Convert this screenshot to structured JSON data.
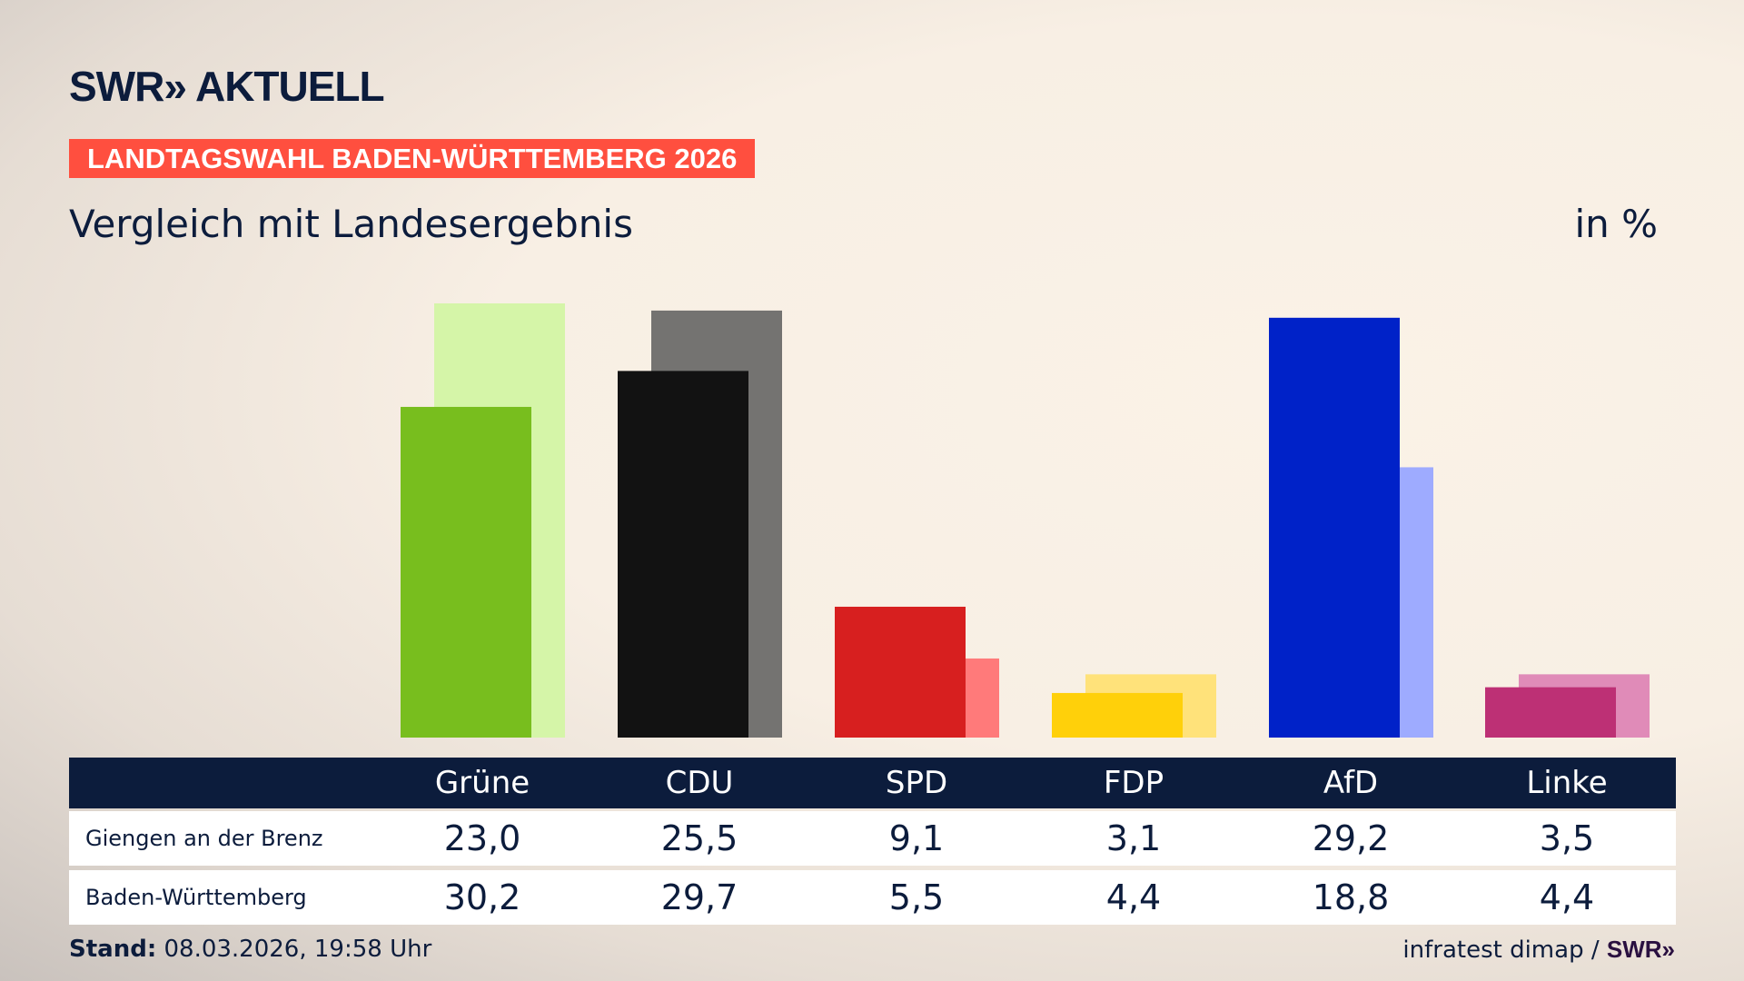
{
  "header": {
    "logo": "SWR» AKTUELL",
    "banner": "LANDTAGSWAHL BADEN-WÜRTTEMBERG 2026",
    "subtitle": "Vergleich mit Landesergebnis",
    "unit": "in %"
  },
  "chart_data": {
    "type": "bar",
    "categories": [
      "Grüne",
      "CDU",
      "SPD",
      "FDP",
      "AfD",
      "Linke"
    ],
    "series": [
      {
        "name": "Giengen an der Brenz",
        "values": [
          23.0,
          25.5,
          9.1,
          3.1,
          29.2,
          3.5
        ],
        "colors": [
          "#78be1e",
          "#121212",
          "#d71f1f",
          "#ffd00a",
          "#0022c8",
          "#bd3075"
        ]
      },
      {
        "name": "Baden-Württemberg",
        "values": [
          30.2,
          29.7,
          5.5,
          4.4,
          18.8,
          4.4
        ],
        "colors": [
          "#d5f5a8",
          "#747371",
          "#ff7a7a",
          "#ffe27a",
          "#9eabff",
          "#e08bb8"
        ]
      }
    ],
    "ylim": [
      0,
      30.2
    ],
    "grid": false,
    "legend": "table-below"
  },
  "table": {
    "headers": [
      "Grüne",
      "CDU",
      "SPD",
      "FDP",
      "AfD",
      "Linke"
    ],
    "rows": [
      {
        "label": "Giengen an der Brenz",
        "values": [
          "23,0",
          "25,5",
          "9,1",
          "3,1",
          "29,2",
          "3,5"
        ]
      },
      {
        "label": "Baden-Württemberg",
        "values": [
          "30,2",
          "29,7",
          "5,5",
          "4,4",
          "18,8",
          "4,4"
        ]
      }
    ]
  },
  "footer": {
    "stand_label": "Stand:",
    "stand_value": "08.03.2026, 19:58 Uhr",
    "source": "infratest dimap /",
    "source_logo": "SWR»"
  },
  "colors": {
    "navy": "#0c1c3c",
    "banner": "#ff4f3f"
  }
}
